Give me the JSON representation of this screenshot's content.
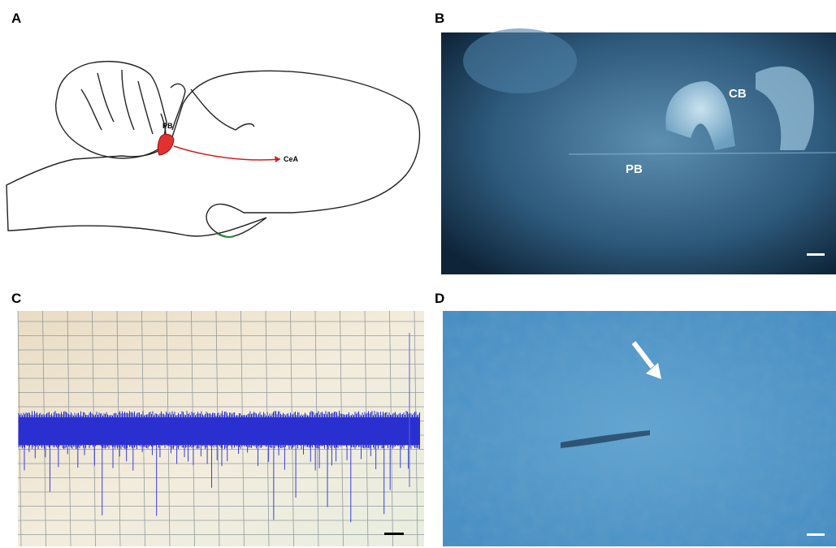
{
  "panels": [
    {
      "label": "A",
      "annotations": [
        "PB",
        "CeA"
      ]
    },
    {
      "label": "B",
      "annotations": [
        "CB",
        "PB"
      ]
    },
    {
      "label": "C"
    },
    {
      "label": "D"
    }
  ]
}
